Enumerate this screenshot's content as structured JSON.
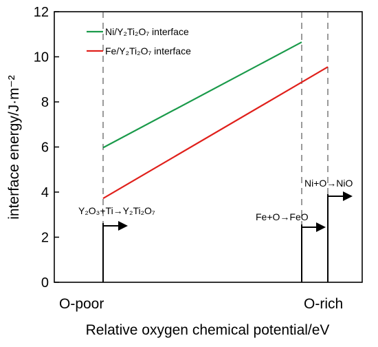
{
  "chart_data": {
    "type": "line",
    "ylabel": "interface energy/J·m⁻²",
    "xlabel": "Relative oxygen chemical potential/eV",
    "ylim": [
      0,
      12
    ],
    "yticks": [
      0,
      2,
      4,
      6,
      8,
      10,
      12
    ],
    "x_categories": [
      "O-poor",
      "O-rich"
    ],
    "grid": false,
    "legend_position": "top-left",
    "series": [
      {
        "name": "Ni/Y₂Ti₂O₇ interface",
        "color": "#1a9a4a",
        "x": [
          "O-poor",
          "Ni+O→NiO"
        ],
        "y": [
          5.97,
          10.65
        ]
      },
      {
        "name": "Fe/Y₂Ti₂O₇ interface",
        "color": "#e0201b",
        "x": [
          "O-poor",
          "O-rich"
        ],
        "y": [
          3.72,
          9.55
        ]
      }
    ],
    "annotations": [
      {
        "text": "Y₂O₃+Ti→Y₂Ti₂O₇",
        "y": 2.55
      },
      {
        "text": "Fe+O→FeO",
        "y": 2.5
      },
      {
        "text": "Ni+O→NiO",
        "y": 3.85
      }
    ]
  }
}
